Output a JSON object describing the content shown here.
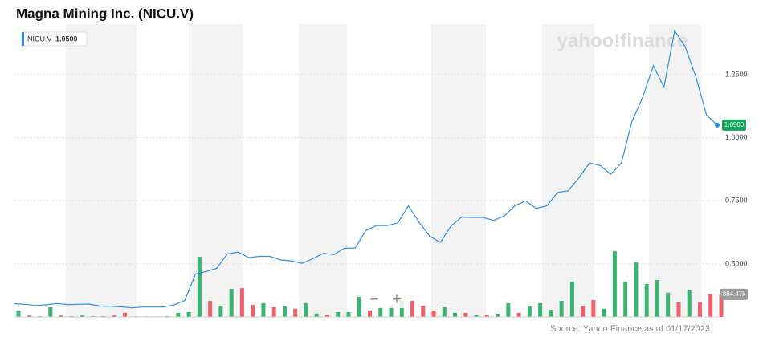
{
  "chart_data": {
    "type": "line",
    "title": "Magna Mining Inc. (NICU.V)",
    "watermark": "yahoo!finance",
    "source": "Source: Yahoo Finance as of 01/17/2023",
    "zoom_out": "−",
    "zoom_in": "+",
    "ylim": [
      0.29,
      1.45
    ],
    "yticks": [
      {
        "value": 0.5,
        "label": "0.5000"
      },
      {
        "value": 0.75,
        "label": "0.7500"
      },
      {
        "value": 1.0,
        "label": "1.0000"
      },
      {
        "value": 1.25,
        "label": "1.2500"
      }
    ],
    "grid": true,
    "price_marker": {
      "value": 1.05,
      "label": "1.0500"
    },
    "series": [
      {
        "name": "NICU.V",
        "color": "#2d8fe6",
        "values": [
          0.342,
          0.34,
          0.335,
          0.338,
          0.343,
          0.339,
          0.34,
          0.341,
          0.333,
          0.332,
          0.33,
          0.326,
          0.329,
          0.329,
          0.329,
          0.338,
          0.355,
          0.46,
          0.47,
          0.483,
          0.54,
          0.547,
          0.525,
          0.53,
          0.53,
          0.516,
          0.512,
          0.502,
          0.52,
          0.542,
          0.537,
          0.562,
          0.563,
          0.632,
          0.652,
          0.652,
          0.662,
          0.73,
          0.665,
          0.61,
          0.585,
          0.65,
          0.685,
          0.684,
          0.684,
          0.672,
          0.69,
          0.73,
          0.75,
          0.72,
          0.73,
          0.783,
          0.79,
          0.84,
          0.9,
          0.89,
          0.855,
          0.9,
          1.065,
          1.16,
          1.285,
          1.2,
          1.424,
          1.36,
          1.24,
          1.09,
          1.05
        ]
      },
      {
        "name": "Volume",
        "axis": "y2",
        "colors": [
          "#3cb371",
          "#f0606a",
          "#3cb371",
          "#3cb371",
          "#f0606a",
          "#3cb371",
          "#3cb371",
          "#f0606a",
          "#f0606a",
          "#f0606a",
          "#f0606a",
          "#3cb371",
          "#3cb371",
          "#3cb371",
          "#3cb371",
          "#3cb371",
          "#3cb371",
          "#3cb371",
          "#f0606a",
          "#3cb371",
          "#3cb371",
          "#f0606a",
          "#f0606a",
          "#3cb371",
          "#f0606a",
          "#3cb371",
          "#f0606a",
          "#3cb371",
          "#3cb371",
          "#f0606a",
          "#3cb371",
          "#3cb371",
          "#3cb371",
          "#f0606a",
          "#3cb371",
          "#3cb371",
          "#3cb371",
          "#f0606a",
          "#f0606a",
          "#f0606a",
          "#3cb371",
          "#3cb371",
          "#f0606a",
          "#3cb371",
          "#f0606a",
          "#3cb371",
          "#3cb371",
          "#f0606a",
          "#3cb371",
          "#3cb371",
          "#3cb371",
          "#3cb371",
          "#3cb371",
          "#f0606a",
          "#f0606a",
          "#3cb371",
          "#3cb371",
          "#3cb371",
          "#3cb371",
          "#3cb371",
          "#3cb371",
          "#3cb371",
          "#f0606a",
          "#3cb371",
          "#f0606a",
          "#f0606a",
          "#f0606a"
        ],
        "values": [
          250000,
          60000,
          30000,
          380000,
          60000,
          30000,
          60000,
          30000,
          30000,
          60000,
          160000,
          20000,
          20000,
          20000,
          30000,
          160000,
          190000,
          2360000,
          630000,
          440000,
          1100000,
          1130000,
          470000,
          540000,
          380000,
          410000,
          320000,
          540000,
          130000,
          95000,
          190000,
          190000,
          790000,
          250000,
          380000,
          440000,
          630000,
          630000,
          440000,
          250000,
          380000,
          160000,
          160000,
          95000,
          95000,
          130000,
          540000,
          160000,
          410000,
          540000,
          280000,
          630000,
          1390000,
          440000,
          660000,
          320000,
          2580000,
          1390000,
          2140000,
          1290000,
          1450000,
          950000,
          570000,
          1040000,
          570000,
          900000,
          884470
        ]
      }
    ],
    "y2lim": [
      0,
      11500000
    ],
    "y2ticks": [
      {
        "value": 884470,
        "label": "884.47k"
      }
    ]
  }
}
